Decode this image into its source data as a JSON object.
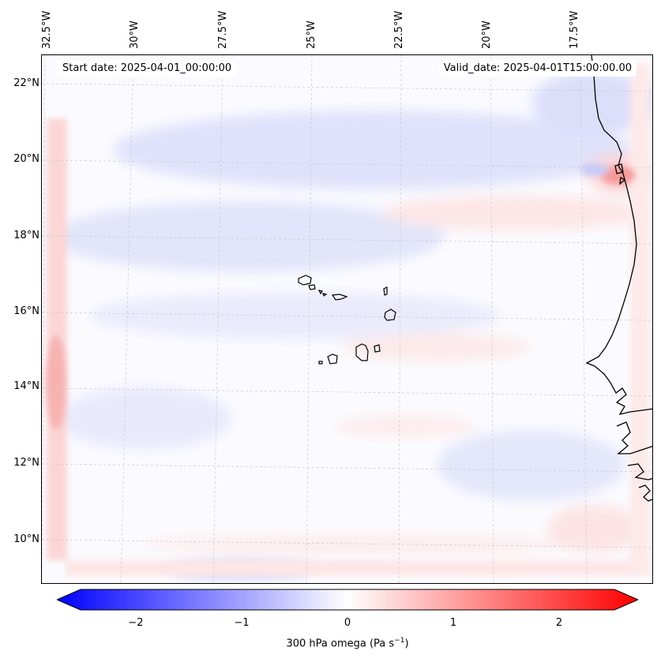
{
  "map": {
    "lat_ticks": [
      "22°N",
      "20°N",
      "18°N",
      "16°N",
      "14°N",
      "12°N",
      "10°N"
    ],
    "lon_ticks": [
      "32.5°W",
      "30°W",
      "27.5°W",
      "25°W",
      "22.5°W",
      "20°W",
      "17.5°W"
    ],
    "start_date": "Start date: 2025-04-01_00:00:00",
    "valid_date": "Valid_date: 2025-04-01T15:00:00.00",
    "region": "Cabo Verde and West African coast",
    "field": "300 hPa omega"
  },
  "colorbar": {
    "label_prefix": "300 hPa omega (Pa s",
    "label_sup": "−1",
    "label_suffix": ")",
    "ticks": [
      "−2",
      "−1",
      "0",
      "1",
      "2"
    ],
    "min": -2.7,
    "max": 2.7,
    "negative_color": "#0000ff",
    "zero_color": "#ffffff",
    "positive_color": "#ff0000"
  },
  "colors": {
    "coastline": "#000000",
    "gridline": "#c8c8c8"
  }
}
